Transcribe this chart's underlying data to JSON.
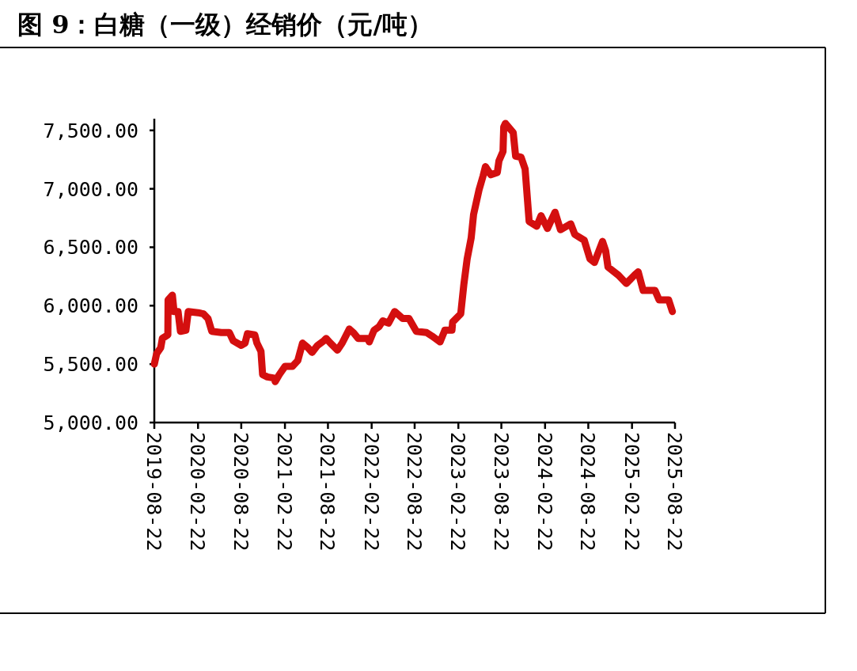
{
  "chart_data": {
    "type": "line",
    "title": "图 9：白糖（一级）经销价（元/吨）",
    "x": [
      "2019-08-22",
      "2019-09-01",
      "2019-09-18",
      "2019-09-25",
      "2019-10-18",
      "2019-10-19",
      "2019-11-06",
      "2019-11-13",
      "2019-11-30",
      "2019-12-10",
      "2020-01-02",
      "2020-01-12",
      "2020-02-22",
      "2020-03-16",
      "2020-04-04",
      "2020-04-20",
      "2020-05-30",
      "2020-07-03",
      "2020-07-19",
      "2020-08-22",
      "2020-09-07",
      "2020-09-17",
      "2020-10-18",
      "2020-10-27",
      "2020-11-13",
      "2020-11-20",
      "2020-12-10",
      "2021-01-08",
      "2021-01-12",
      "2021-01-29",
      "2021-02-22",
      "2021-03-25",
      "2021-04-17",
      "2021-05-07",
      "2021-05-30",
      "2021-06-16",
      "2021-07-09",
      "2021-08-05",
      "2021-08-14",
      "2021-09-01",
      "2021-10-01",
      "2021-10-21",
      "2021-11-20",
      "2021-12-07",
      "2021-12-27",
      "2022-02-05",
      "2022-02-12",
      "2022-03-04",
      "2022-03-25",
      "2022-04-10",
      "2022-05-04",
      "2022-05-30",
      "2022-07-03",
      "2022-07-29",
      "2022-08-29",
      "2022-10-11",
      "2022-11-03",
      "2022-12-07",
      "2022-12-27",
      "2023-01-26",
      "2023-01-29",
      "2023-03-04",
      "2023-03-17",
      "2023-03-31",
      "2023-04-17",
      "2023-04-27",
      "2023-05-20",
      "2023-06-06",
      "2023-06-16",
      "2023-07-09",
      "2023-08-05",
      "2023-08-12",
      "2023-08-29",
      "2023-09-01",
      "2023-09-08",
      "2023-10-11",
      "2023-10-21",
      "2023-11-13",
      "2023-11-30",
      "2023-12-17",
      "2024-01-18",
      "2024-02-05",
      "2024-03-03",
      "2024-04-04",
      "2024-04-27",
      "2024-06-09",
      "2024-06-26",
      "2024-08-05",
      "2024-08-29",
      "2024-09-17",
      "2024-10-21",
      "2024-11-03",
      "2024-11-13",
      "2024-12-27",
      "2025-01-29",
      "2025-03-04",
      "2025-03-20",
      "2025-04-10",
      "2025-05-30",
      "2025-06-16",
      "2025-07-26",
      "2025-08-11"
    ],
    "series": [
      {
        "color": "#d40f0f",
        "values": [
          5500,
          5590,
          5640,
          5720,
          5750,
          6050,
          6090,
          5950,
          5950,
          5780,
          5790,
          5950,
          5940,
          5930,
          5890,
          5780,
          5770,
          5770,
          5700,
          5660,
          5680,
          5760,
          5750,
          5680,
          5610,
          5410,
          5390,
          5380,
          5350,
          5410,
          5480,
          5480,
          5530,
          5680,
          5640,
          5600,
          5660,
          5700,
          5720,
          5680,
          5620,
          5680,
          5800,
          5770,
          5720,
          5720,
          5690,
          5790,
          5820,
          5870,
          5850,
          5950,
          5890,
          5890,
          5780,
          5770,
          5740,
          5690,
          5790,
          5790,
          5860,
          5930,
          6180,
          6400,
          6580,
          6780,
          6990,
          7110,
          7190,
          7120,
          7140,
          7240,
          7320,
          7530,
          7560,
          7480,
          7280,
          7270,
          7170,
          6720,
          6680,
          6770,
          6660,
          6800,
          6650,
          6700,
          6610,
          6560,
          6400,
          6370,
          6550,
          6470,
          6330,
          6260,
          6190,
          6260,
          6290,
          6130,
          6130,
          6050,
          6050,
          5950
        ]
      }
    ],
    "xlim": [
      "2019-08-22",
      "2025-08-22"
    ],
    "xticks": [
      "2019-08-22",
      "2020-02-22",
      "2020-08-22",
      "2021-02-22",
      "2021-08-22",
      "2022-02-22",
      "2022-08-22",
      "2023-02-22",
      "2023-08-22",
      "2024-02-22",
      "2024-08-22",
      "2025-02-22",
      "2025-08-22"
    ],
    "ylim": [
      5000,
      7600
    ],
    "yticks": [
      {
        "value": 5000,
        "label": "5,000.00"
      },
      {
        "value": 5500,
        "label": "5,500.00"
      },
      {
        "value": 6000,
        "label": "6,000.00"
      },
      {
        "value": 6500,
        "label": "6,500.00"
      },
      {
        "value": 7000,
        "label": "7,000.00"
      },
      {
        "value": 7500,
        "label": "7,500.00"
      }
    ],
    "marker": "none",
    "line_style": "solid"
  }
}
